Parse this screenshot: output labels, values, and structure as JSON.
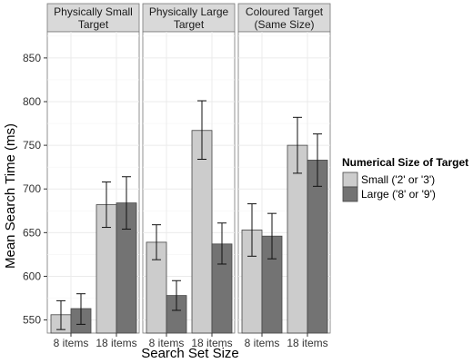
{
  "chart_data": {
    "type": "bar",
    "xlabel": "Search Set Size",
    "ylabel": "Mean Search Time (ms)",
    "y_ticks": [
      550,
      600,
      650,
      700,
      750,
      800,
      850
    ],
    "ylim": [
      535,
      880
    ],
    "grid": true,
    "legend_position": "right",
    "legend": {
      "title": "Numerical Size of Target",
      "entries": [
        {
          "label": "Small ('2' or '3')",
          "color": "#cccccc"
        },
        {
          "label": "Large ('8' or '9')",
          "color": "#737373"
        }
      ]
    },
    "categories": [
      "8 items",
      "18 items"
    ],
    "panels": [
      {
        "title_lines": [
          "Physically Small",
          "Target"
        ],
        "series": [
          {
            "name": "Small ('2' or '3')",
            "values": [
              556,
              682
            ],
            "err_low": [
              539,
              656
            ],
            "err_high": [
              572,
              708
            ]
          },
          {
            "name": "Large ('8' or '9')",
            "values": [
              563,
              684
            ],
            "err_low": [
              545,
              654
            ],
            "err_high": [
              580,
              714
            ]
          }
        ]
      },
      {
        "title_lines": [
          "Physically Large",
          "Target"
        ],
        "series": [
          {
            "name": "Small ('2' or '3')",
            "values": [
              639,
              767
            ],
            "err_low": [
              619,
              734
            ],
            "err_high": [
              659,
              801
            ]
          },
          {
            "name": "Large ('8' or '9')",
            "values": [
              578,
              637
            ],
            "err_low": [
              561,
              614
            ],
            "err_high": [
              595,
              661
            ]
          }
        ]
      },
      {
        "title_lines": [
          "Coloured Target",
          "(Same Size)"
        ],
        "series": [
          {
            "name": "Small ('2' or '3')",
            "values": [
              653,
              750
            ],
            "err_low": [
              623,
              718
            ],
            "err_high": [
              683,
              782
            ]
          },
          {
            "name": "Large ('8' or '9')",
            "values": [
              646,
              733
            ],
            "err_low": [
              620,
              703
            ],
            "err_high": [
              672,
              763
            ]
          }
        ]
      }
    ]
  }
}
